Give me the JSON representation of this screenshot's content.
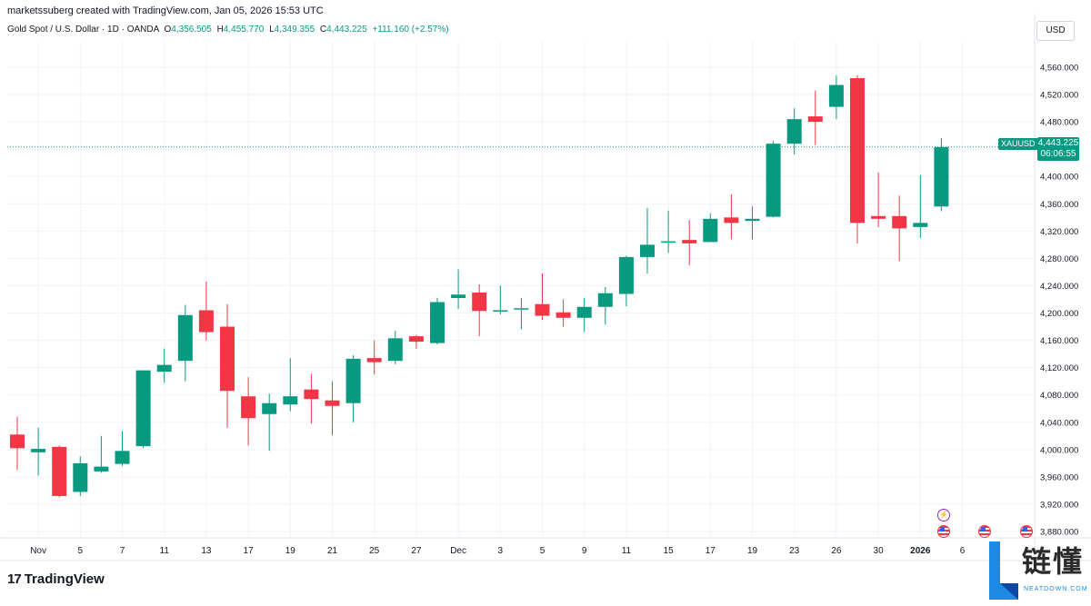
{
  "header": {
    "credit": "marketssuberg created with TradingView.com, Jan 05, 2026 15:53 UTC"
  },
  "symbol": {
    "name": "Gold Spot / U.S. Dollar · 1D · OANDA",
    "open_label": "O",
    "open": "4,356.505",
    "high_label": "H",
    "high": "4,455.770",
    "low_label": "L",
    "low": "4,349.355",
    "close_label": "C",
    "close": "4,443.225",
    "change": "+111.160 (+2.57%)"
  },
  "price_scale": {
    "currency": "USD"
  },
  "last_price": {
    "ticker": "XAUUSD",
    "price": "4,443.225",
    "countdown": "06:06:55"
  },
  "footer": {
    "brand": "TradingView",
    "brand_mark": "17"
  },
  "watermark": {
    "cn": "链懂",
    "en": "NEATDOWN.COM"
  },
  "colors": {
    "up": "#089981",
    "down": "#f23645",
    "grid": "#f0f3fa",
    "text": "#131722"
  },
  "icons": [
    "flash-event-icon",
    "us-flag-event-icon"
  ],
  "chart_data": {
    "type": "candlestick",
    "ylim": [
      3860,
      4580
    ],
    "y_ticks": [
      "3,880.000",
      "3,920.000",
      "3,960.000",
      "4,000.000",
      "4,040.000",
      "4,080.000",
      "4,120.000",
      "4,160.000",
      "4,200.000",
      "4,240.000",
      "4,280.000",
      "4,320.000",
      "4,360.000",
      "4,400.000",
      "4,440.000",
      "4,480.000",
      "4,520.000",
      "4,560.000"
    ],
    "x_labels": [
      {
        "i": 1,
        "text": "Nov"
      },
      {
        "i": 3,
        "text": "5"
      },
      {
        "i": 5,
        "text": "7"
      },
      {
        "i": 7,
        "text": "11"
      },
      {
        "i": 9,
        "text": "13"
      },
      {
        "i": 11,
        "text": "17"
      },
      {
        "i": 13,
        "text": "19"
      },
      {
        "i": 15,
        "text": "21"
      },
      {
        "i": 17,
        "text": "25"
      },
      {
        "i": 19,
        "text": "27"
      },
      {
        "i": 21,
        "text": "Dec"
      },
      {
        "i": 23,
        "text": "3"
      },
      {
        "i": 25,
        "text": "5"
      },
      {
        "i": 27,
        "text": "9"
      },
      {
        "i": 29,
        "text": "11"
      },
      {
        "i": 31,
        "text": "15"
      },
      {
        "i": 33,
        "text": "17"
      },
      {
        "i": 35,
        "text": "19"
      },
      {
        "i": 37,
        "text": "23"
      },
      {
        "i": 39,
        "text": "26"
      },
      {
        "i": 41,
        "text": "30"
      },
      {
        "i": 43,
        "text": "2026"
      },
      {
        "i": 45,
        "text": "6"
      }
    ],
    "candles": [
      {
        "o": 4022,
        "h": 4048,
        "l": 3970,
        "c": 4002
      },
      {
        "o": 3996,
        "h": 4032,
        "l": 3962,
        "c": 4001
      },
      {
        "o": 4004,
        "h": 4006,
        "l": 3930,
        "c": 3932
      },
      {
        "o": 3938,
        "h": 3990,
        "l": 3932,
        "c": 3980
      },
      {
        "o": 3968,
        "h": 4020,
        "l": 3966,
        "c": 3975
      },
      {
        "o": 3979,
        "h": 4027,
        "l": 3976,
        "c": 3998
      },
      {
        "o": 4005,
        "h": 4116,
        "l": 4002,
        "c": 4116
      },
      {
        "o": 4114,
        "h": 4148,
        "l": 4098,
        "c": 4124
      },
      {
        "o": 4130,
        "h": 4212,
        "l": 4100,
        "c": 4197
      },
      {
        "o": 4204,
        "h": 4246,
        "l": 4160,
        "c": 4172
      },
      {
        "o": 4180,
        "h": 4213,
        "l": 4032,
        "c": 4086
      },
      {
        "o": 4078,
        "h": 4106,
        "l": 4006,
        "c": 4046
      },
      {
        "o": 4052,
        "h": 4082,
        "l": 3998,
        "c": 4068
      },
      {
        "o": 4066,
        "h": 4134,
        "l": 4056,
        "c": 4078
      },
      {
        "o": 4088,
        "h": 4111,
        "l": 4038,
        "c": 4074
      },
      {
        "o": 4072,
        "h": 4100,
        "l": 4021,
        "c": 4064
      },
      {
        "o": 4068,
        "h": 4138,
        "l": 4040,
        "c": 4133
      },
      {
        "o": 4134,
        "h": 4160,
        "l": 4110,
        "c": 4128
      },
      {
        "o": 4130,
        "h": 4174,
        "l": 4125,
        "c": 4163
      },
      {
        "o": 4166,
        "h": 4168,
        "l": 4148,
        "c": 4158
      },
      {
        "o": 4156,
        "h": 4222,
        "l": 4154,
        "c": 4216
      },
      {
        "o": 4222,
        "h": 4264,
        "l": 4206,
        "c": 4227
      },
      {
        "o": 4230,
        "h": 4242,
        "l": 4166,
        "c": 4203
      },
      {
        "o": 4203,
        "h": 4240,
        "l": 4198,
        "c": 4204
      },
      {
        "o": 4205,
        "h": 4222,
        "l": 4176,
        "c": 4207
      },
      {
        "o": 4213,
        "h": 4258,
        "l": 4190,
        "c": 4196
      },
      {
        "o": 4201,
        "h": 4220,
        "l": 4180,
        "c": 4193
      },
      {
        "o": 4193,
        "h": 4222,
        "l": 4172,
        "c": 4209
      },
      {
        "o": 4209,
        "h": 4238,
        "l": 4183,
        "c": 4229
      },
      {
        "o": 4228,
        "h": 4284,
        "l": 4210,
        "c": 4282
      },
      {
        "o": 4282,
        "h": 4354,
        "l": 4258,
        "c": 4300
      },
      {
        "o": 4304,
        "h": 4350,
        "l": 4288,
        "c": 4305
      },
      {
        "o": 4307,
        "h": 4336,
        "l": 4270,
        "c": 4302
      },
      {
        "o": 4304,
        "h": 4346,
        "l": 4304,
        "c": 4338
      },
      {
        "o": 4340,
        "h": 4374,
        "l": 4308,
        "c": 4332
      },
      {
        "o": 4335,
        "h": 4356,
        "l": 4308,
        "c": 4338
      },
      {
        "o": 4341,
        "h": 4452,
        "l": 4340,
        "c": 4448
      },
      {
        "o": 4448,
        "h": 4500,
        "l": 4432,
        "c": 4484
      },
      {
        "o": 4488,
        "h": 4526,
        "l": 4446,
        "c": 4480
      },
      {
        "o": 4502,
        "h": 4548,
        "l": 4484,
        "c": 4534
      },
      {
        "o": 4544,
        "h": 4548,
        "l": 4302,
        "c": 4332
      },
      {
        "o": 4342,
        "h": 4406,
        "l": 4326,
        "c": 4338
      },
      {
        "o": 4342,
        "h": 4372,
        "l": 4276,
        "c": 4324
      },
      {
        "o": 4326,
        "h": 4402,
        "l": 4310,
        "c": 4332
      },
      {
        "o": 4356,
        "h": 4456,
        "l": 4349,
        "c": 4443
      }
    ],
    "last": 4443.225
  }
}
